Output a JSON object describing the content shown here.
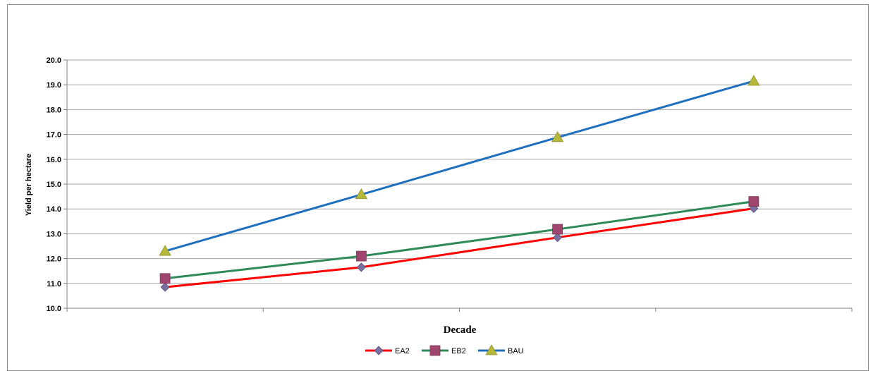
{
  "chart_data": {
    "type": "line",
    "title": "",
    "xlabel": "Decade",
    "ylabel": "Yield per hectare",
    "categories": [
      "",
      "",
      "",
      ""
    ],
    "ylim": [
      10.0,
      20.0
    ],
    "ytick_step": 1.0,
    "yticks": [
      "10.0",
      "11.0",
      "12.0",
      "13.0",
      "14.0",
      "15.0",
      "16.0",
      "17.0",
      "18.0",
      "19.0",
      "20.0"
    ],
    "grid": true,
    "legend_position": "bottom",
    "series": [
      {
        "name": "EA2",
        "values": [
          10.85,
          11.65,
          12.85,
          14.02
        ],
        "color": "#ff0000",
        "marker": "diamond",
        "marker_color": "#7b6fa0"
      },
      {
        "name": "EB2",
        "values": [
          11.2,
          12.1,
          13.18,
          14.3
        ],
        "color": "#2e8b57",
        "marker": "square",
        "marker_color": "#a0456e"
      },
      {
        "name": "BAU",
        "values": [
          12.3,
          14.58,
          16.88,
          19.15
        ],
        "color": "#1f6fbf",
        "marker": "triangle",
        "marker_color": "#b5b83a"
      }
    ]
  }
}
